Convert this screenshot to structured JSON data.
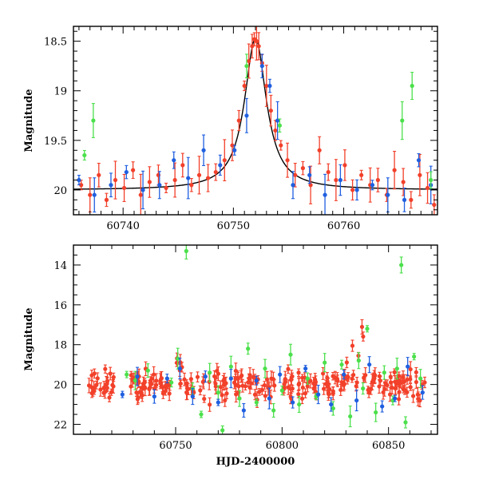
{
  "colors": {
    "red": "#f2402a",
    "blue": "#1f5fe0",
    "green": "#4be04b",
    "model": "#000000"
  },
  "chart_data": [
    {
      "type": "scatter",
      "panel": "top",
      "title": "",
      "xlabel": "",
      "ylabel": "Magnitude",
      "xlim": [
        60735.5,
        60768.5
      ],
      "ylim": [
        20.25,
        18.35
      ],
      "y_inverted": true,
      "x_ticks": [
        60740,
        60750,
        60760
      ],
      "x_tick_labels": [
        "60740",
        "60750",
        "60760"
      ],
      "y_ticks": [
        18.5,
        19,
        19.5,
        20
      ],
      "y_tick_labels": [
        "18.5",
        "19",
        "19.5",
        "20"
      ],
      "model_curve": {
        "type": "peak",
        "t0": 60752.0,
        "peak_mag": 18.47,
        "baseline_mag": 20.0,
        "width_days": 1.2
      },
      "series": [
        {
          "color": "red",
          "x": [
            60736.2,
            60737.0,
            60737.8,
            60738.5,
            60739.3,
            60740.1,
            60740.9,
            60741.6,
            60742.4,
            60743.2,
            60743.9,
            60744.7,
            60745.4,
            60746.2,
            60746.9,
            60747.7,
            60748.4,
            60749.2,
            60749.9,
            60750.5,
            60751.0,
            60751.4,
            60751.7,
            60751.9,
            60752.1,
            60752.3,
            60752.6,
            60753.0,
            60753.4,
            60753.8,
            60754.3,
            60754.9,
            60755.6,
            60756.3,
            60757.0,
            60757.8,
            60758.6,
            60759.3,
            60760.1,
            60760.8,
            60761.6,
            60762.4,
            60763.1,
            60763.9,
            60764.6,
            60765.4,
            60766.1,
            60766.9,
            60767.6,
            60768.2
          ],
          "y": [
            19.95,
            20.05,
            19.85,
            20.1,
            19.9,
            19.98,
            19.8,
            20.05,
            19.92,
            19.85,
            19.98,
            19.9,
            19.75,
            19.95,
            19.85,
            19.88,
            19.82,
            19.7,
            19.55,
            19.3,
            18.95,
            18.7,
            18.55,
            18.48,
            18.5,
            18.55,
            18.72,
            18.95,
            19.2,
            19.4,
            19.55,
            19.7,
            19.85,
            19.78,
            19.95,
            19.6,
            19.82,
            19.9,
            19.75,
            20.0,
            19.85,
            19.95,
            19.9,
            20.05,
            19.8,
            19.92,
            20.1,
            19.85,
            19.98,
            20.15
          ]
        },
        {
          "color": "blue",
          "x": [
            60736.0,
            60737.4,
            60738.9,
            60740.3,
            60741.8,
            60743.3,
            60744.6,
            60745.9,
            60747.3,
            60748.8,
            60750.1,
            60751.2,
            60752.6,
            60753.3,
            60754.0,
            60755.4,
            60756.9,
            60758.3,
            60759.7,
            60761.2,
            60762.6,
            60764.0,
            60765.5,
            60766.8,
            60767.9
          ],
          "y": [
            19.9,
            20.05,
            19.95,
            19.82,
            20.0,
            19.95,
            19.7,
            19.88,
            19.6,
            19.75,
            19.6,
            19.25,
            18.75,
            18.95,
            19.3,
            19.95,
            19.85,
            20.05,
            19.9,
            20.0,
            19.95,
            20.05,
            20.1,
            19.7,
            19.95
          ]
        },
        {
          "color": "green",
          "x": [
            60736.5,
            60737.3,
            60751.2,
            60754.2,
            60765.3,
            60766.2,
            60767.9
          ],
          "y": [
            19.65,
            19.3,
            18.75,
            19.35,
            19.3,
            18.95,
            19.9
          ]
        }
      ]
    },
    {
      "type": "scatter",
      "panel": "bottom",
      "title": "",
      "xlabel": "HJD-2400000",
      "ylabel": "Magnitude",
      "xlim": [
        60702,
        60873
      ],
      "ylim": [
        22.5,
        13
      ],
      "y_inverted": true,
      "x_ticks": [
        60750,
        60800,
        60850
      ],
      "x_tick_labels": [
        "60750",
        "60800",
        "60850"
      ],
      "y_ticks": [
        14,
        16,
        18,
        20,
        22
      ],
      "y_tick_labels": [
        "14",
        "16",
        "18",
        "20",
        "22"
      ],
      "series": [
        {
          "color": "green",
          "x": [
            60727,
            60731,
            60737,
            60748,
            60751,
            60755,
            60758,
            60762,
            60766,
            60770,
            60772,
            60776,
            60780,
            60784,
            60788,
            60792,
            60796,
            60800,
            60804,
            60808,
            60812,
            60816,
            60820,
            60824,
            60828,
            60832,
            60836,
            60838,
            60840,
            60844,
            60848,
            60852,
            60854,
            60856,
            60858,
            60862,
            60865
          ],
          "y": [
            19.5,
            19.8,
            19.3,
            19.9,
            18.7,
            13.3,
            20.2,
            21.5,
            19.4,
            20.4,
            22.3,
            19.1,
            20.7,
            18.2,
            20.9,
            19.2,
            21.3,
            20.3,
            18.5,
            21.0,
            19.7,
            20.6,
            18.9,
            21.2,
            19.0,
            21.6,
            18.8,
            20.2,
            17.2,
            21.4,
            19.4,
            20.8,
            19.2,
            14.0,
            21.9,
            18.6,
            19.7
          ]
        },
        {
          "color": "blue",
          "x": [
            60725,
            60732,
            60740,
            60746,
            60752,
            60758,
            60764,
            60770,
            60776,
            60782,
            60788,
            60794,
            60799,
            60805,
            60811,
            60817,
            60823,
            60829,
            60835,
            60841,
            60847,
            60853,
            60859,
            60866
          ],
          "y": [
            20.5,
            19.6,
            20.6,
            19.7,
            19.2,
            20.6,
            19.6,
            20.9,
            19.7,
            21.3,
            19.8,
            20.7,
            19.5,
            20.9,
            19.2,
            20.5,
            21.0,
            19.5,
            20.8,
            19.0,
            21.1,
            20.7,
            19.1,
            20.4
          ]
        }
      ],
      "red_density": {
        "x_start": [
          60709,
          60728
        ],
        "x_end": [
          60721,
          60868
        ],
        "count": 260,
        "center_mag": 20.0,
        "scatter_mag": 0.35
      }
    }
  ]
}
